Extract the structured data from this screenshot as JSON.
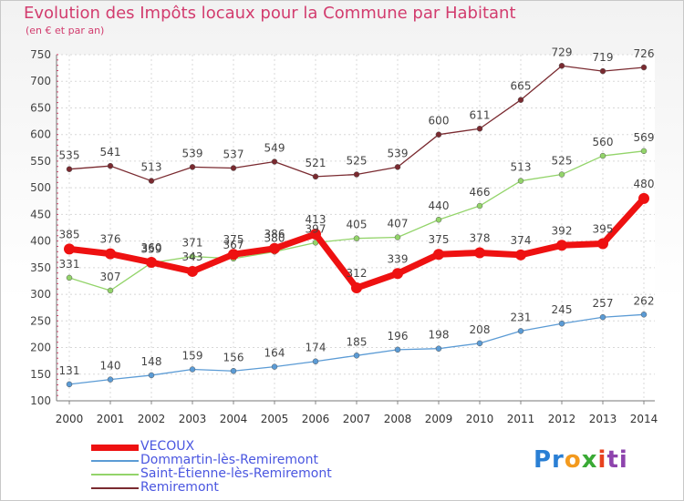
{
  "title": "Evolution des Impôts locaux pour la Commune par Habitant",
  "subtitle": "(en € et par an)",
  "logo": {
    "parts": [
      "Pr",
      "o",
      "x",
      "i",
      "ti"
    ],
    "colors": [
      "#2a7fd4",
      "#f39a1e",
      "#3aaa35",
      "#e8421e",
      "#8e44ad"
    ]
  },
  "chart_data": {
    "type": "line",
    "title": "Evolution des Impôts locaux pour la Commune par Habitant",
    "ylabel": "(en € et par an)",
    "xlabel": "",
    "ylim": [
      100,
      750
    ],
    "yticks": [
      100,
      150,
      200,
      250,
      300,
      350,
      400,
      450,
      500,
      550,
      600,
      650,
      700,
      750
    ],
    "categories": [
      "2000",
      "2001",
      "2002",
      "2003",
      "2004",
      "2005",
      "2006",
      "2007",
      "2008",
      "2009",
      "2010",
      "2011",
      "2012",
      "2013",
      "2014"
    ],
    "series": [
      {
        "name": "Remiremont",
        "color": "#7a2a30",
        "width": 1.3,
        "marker": 3,
        "values": [
          535,
          541,
          513,
          539,
          537,
          549,
          521,
          525,
          539,
          600,
          611,
          665,
          729,
          719,
          726
        ]
      },
      {
        "name": "Saint-Étienne-lès-Remiremont",
        "color": "#93d46a",
        "width": 1.3,
        "marker": 3,
        "values": [
          331,
          307,
          359,
          371,
          367,
          380,
          397,
          405,
          407,
          440,
          466,
          513,
          525,
          560,
          569
        ]
      },
      {
        "name": "Dommartin-lès-Remiremont",
        "color": "#5b9bd5",
        "width": 1.3,
        "marker": 3,
        "values": [
          131,
          140,
          148,
          159,
          156,
          164,
          174,
          185,
          196,
          198,
          208,
          231,
          245,
          257,
          262
        ]
      },
      {
        "name": "VECOUX",
        "color": "#ee1111",
        "width": 7,
        "marker": 6,
        "values": [
          385,
          376,
          360,
          343,
          375,
          386,
          413,
          312,
          339,
          375,
          378,
          374,
          392,
          395,
          480
        ]
      }
    ],
    "legend_order": [
      "VECOUX",
      "Dommartin-lès-Remiremont",
      "Saint-Étienne-lès-Remiremont",
      "Remiremont"
    ],
    "legend_position": "bottom-left",
    "grid": true
  }
}
